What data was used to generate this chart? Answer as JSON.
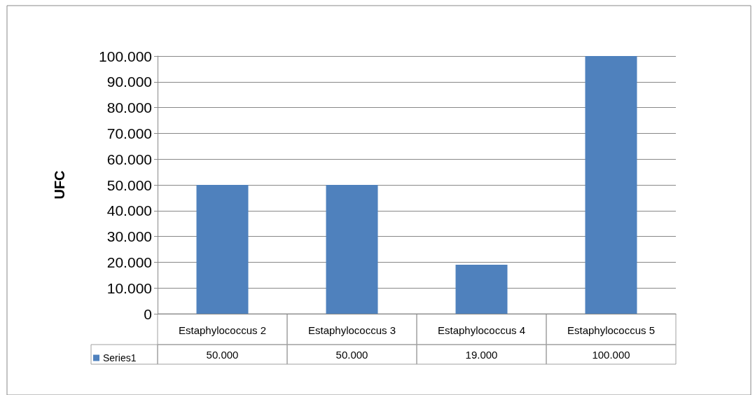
{
  "chart_data": {
    "type": "bar",
    "ylabel": "UFC",
    "categories": [
      "Estaphylococcus 2",
      "Estaphylococcus 3",
      "Estaphylococcus 4",
      "Estaphylococcus 5"
    ],
    "series": [
      {
        "name": "Series1",
        "color": "#4f81bd",
        "values": [
          50000,
          50000,
          19000,
          100000
        ],
        "value_labels": [
          "50.000",
          "50.000",
          "19.000",
          "100.000"
        ]
      }
    ],
    "ylim": [
      0,
      100000
    ],
    "yticks": [
      0,
      {
        "value": 10000,
        "label": "10.000"
      },
      {
        "value": 20000,
        "label": "20.000"
      },
      {
        "value": 30000,
        "label": "30.000"
      },
      {
        "value": 40000,
        "label": "40.000"
      },
      {
        "value": 50000,
        "label": "50.000"
      },
      {
        "value": 60000,
        "label": "60.000"
      },
      {
        "value": 70000,
        "label": "70.000"
      },
      {
        "value": 80000,
        "label": "80.000"
      },
      {
        "value": 90000,
        "label": "90.000"
      },
      {
        "value": 100000,
        "label": "100.000"
      }
    ],
    "grid": "y",
    "legend": "bottom left"
  }
}
